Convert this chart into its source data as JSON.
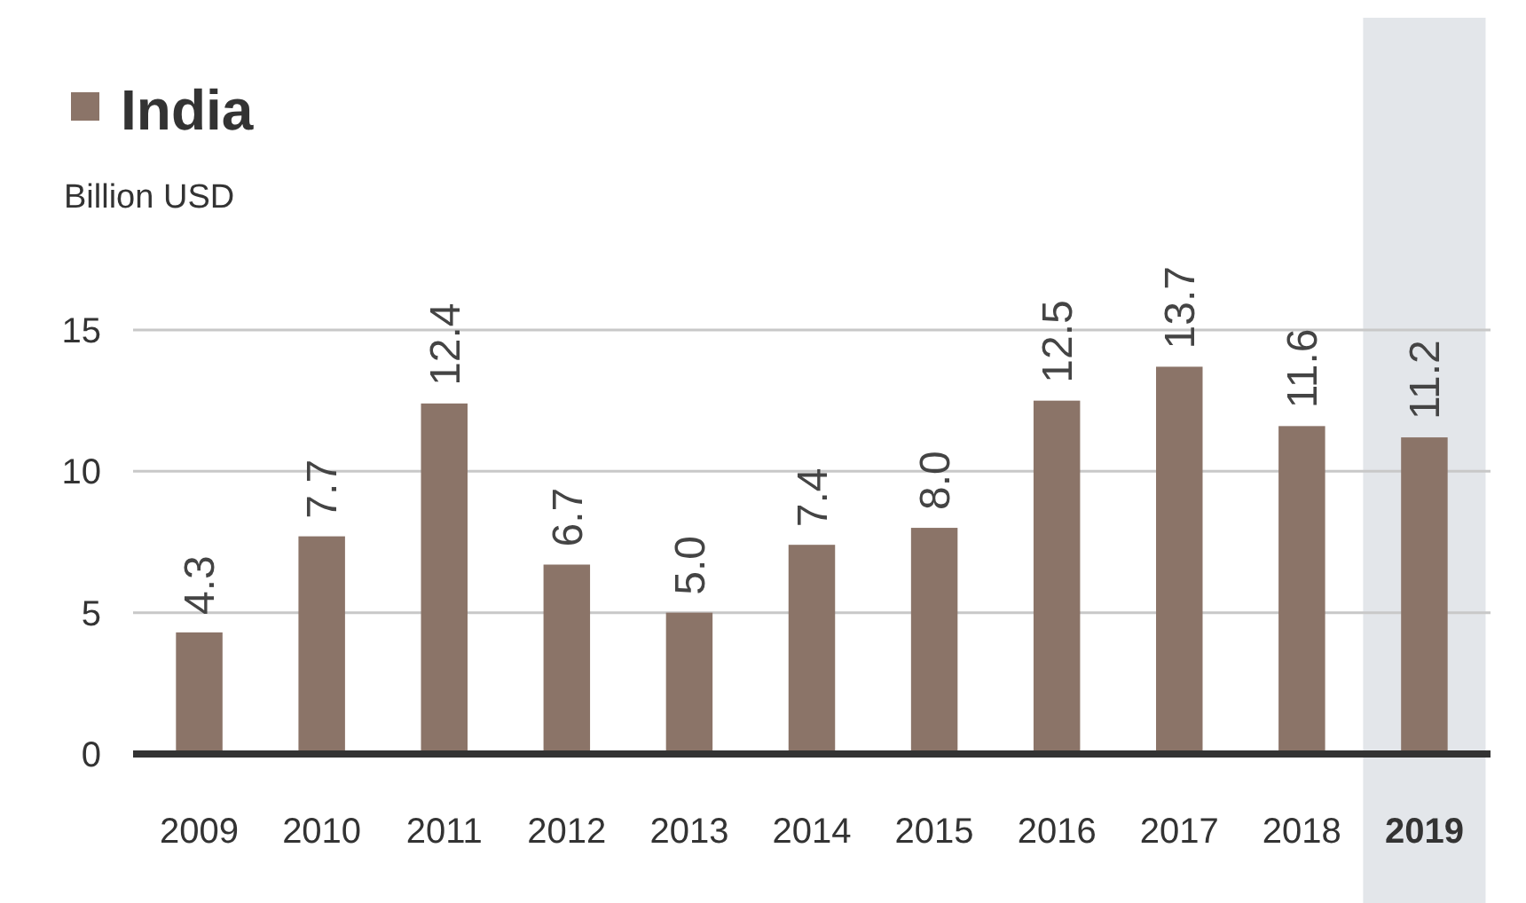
{
  "chart_data": {
    "type": "bar",
    "ylabel": "Billion USD",
    "categories": [
      "2009",
      "2010",
      "2011",
      "2012",
      "2013",
      "2014",
      "2015",
      "2016",
      "2017",
      "2018",
      "2019"
    ],
    "series": [
      {
        "name": "India",
        "color": "#8b7468",
        "values": [
          4.3,
          7.7,
          12.4,
          6.7,
          5.0,
          7.4,
          8.0,
          12.5,
          13.7,
          11.6,
          11.2
        ]
      }
    ],
    "value_labels": [
      "4.3",
      "7.7",
      "12.4",
      "6.7",
      "5.0",
      "7.4",
      "8.0",
      "12.5",
      "13.7",
      "11.6",
      "11.2"
    ],
    "ylim": [
      0,
      15
    ],
    "yticks": [
      0,
      5,
      10,
      15
    ],
    "grid": "y",
    "legend": "top left",
    "bands": [
      {
        "axis": "x",
        "from": "2019",
        "to": "2019",
        "color": "#e3e6ea"
      }
    ]
  }
}
